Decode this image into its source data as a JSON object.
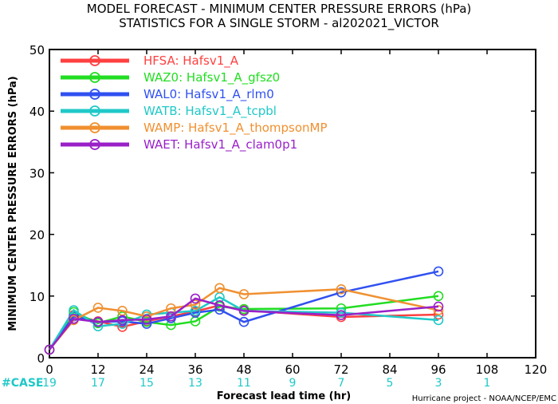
{
  "chart_data": {
    "type": "line",
    "title": "MODEL FORECAST - MINIMUM CENTER PRESSURE ERRORS (hPa)",
    "subtitle": "STATISTICS FOR A SINGLE STORM - al202021_VICTOR",
    "xlabel": "Forecast lead time (hr)",
    "ylabel": "MINIMUM CENTER PRESSURE ERRORS (hPa)",
    "xlim": [
      0,
      120
    ],
    "ylim": [
      0,
      50
    ],
    "xticks": [
      0,
      12,
      24,
      36,
      48,
      60,
      72,
      84,
      96,
      108,
      120
    ],
    "yticks": [
      0,
      10,
      20,
      30,
      40,
      50
    ],
    "grid": false,
    "legend_position": "top-left",
    "series": [
      {
        "name": "HFSA: Hafsv1_A",
        "color": "#ff4040",
        "x": [
          0,
          6,
          12,
          18,
          24,
          30,
          36,
          42,
          48,
          72,
          96
        ],
        "y": [
          1.3,
          6.9,
          5.9,
          5.0,
          5.9,
          6.7,
          7.5,
          8.5,
          7.7,
          6.6,
          7.0
        ]
      },
      {
        "name": "WAZ0: Hafsv1_A_gfsz0",
        "color": "#22dd22",
        "x": [
          0,
          6,
          12,
          18,
          24,
          30,
          36,
          42,
          48,
          72,
          96
        ],
        "y": [
          1.3,
          7.4,
          5.6,
          6.7,
          5.8,
          5.3,
          5.9,
          8.3,
          7.9,
          8.0,
          10.0
        ]
      },
      {
        "name": "WAL0: Hafsv1_A_rlm0",
        "color": "#3050f0",
        "x": [
          0,
          6,
          12,
          18,
          24,
          30,
          36,
          42,
          48,
          72,
          96
        ],
        "y": [
          1.3,
          6.7,
          5.8,
          5.9,
          5.5,
          6.4,
          7.3,
          7.8,
          5.8,
          10.6,
          14.0
        ]
      },
      {
        "name": "WATB: Hafsv1_A_tcpbl",
        "color": "#20c8c8",
        "x": [
          0,
          6,
          12,
          18,
          24,
          30,
          36,
          42,
          48,
          72,
          96
        ],
        "y": [
          1.3,
          7.7,
          5.1,
          5.5,
          7.0,
          7.3,
          7.6,
          9.8,
          7.6,
          7.3,
          6.1
        ]
      },
      {
        "name": "WAMP: Hafsv1_A_thompsonMP",
        "color": "#f09030",
        "x": [
          0,
          6,
          12,
          18,
          24,
          30,
          36,
          42,
          48,
          72,
          96
        ],
        "y": [
          1.3,
          6.1,
          8.1,
          7.6,
          6.7,
          8.0,
          8.6,
          11.3,
          10.3,
          11.1,
          7.7
        ]
      },
      {
        "name": "WAET: Hafsv1_A_clam0p1",
        "color": "#9a20c8",
        "x": [
          0,
          6,
          12,
          18,
          24,
          30,
          36,
          42,
          48,
          72,
          96
        ],
        "y": [
          1.3,
          6.3,
          5.8,
          6.1,
          6.2,
          6.7,
          9.6,
          8.5,
          7.6,
          6.9,
          8.3
        ]
      }
    ],
    "case_label": "#CASE",
    "case_label_color": "#20c8c8",
    "case_counts": [
      {
        "x": 0,
        "n": "19"
      },
      {
        "x": 12,
        "n": "17"
      },
      {
        "x": 24,
        "n": "15"
      },
      {
        "x": 36,
        "n": "13"
      },
      {
        "x": 48,
        "n": "11"
      },
      {
        "x": 60,
        "n": "9"
      },
      {
        "x": 72,
        "n": "7"
      },
      {
        "x": 84,
        "n": "5"
      },
      {
        "x": 96,
        "n": "3"
      },
      {
        "x": 108,
        "n": "1"
      }
    ],
    "credit": "Hurricane project - NOAA/NCEP/EMC"
  }
}
